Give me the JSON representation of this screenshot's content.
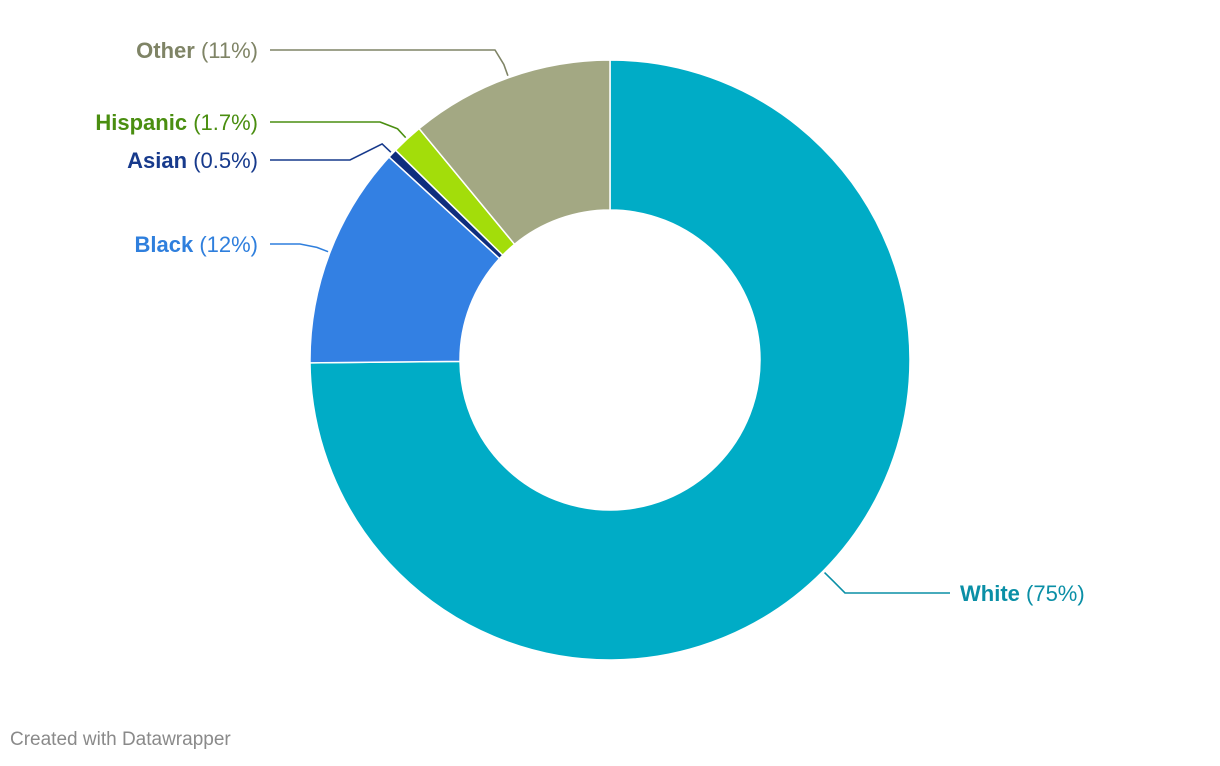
{
  "chart_data": {
    "type": "donut",
    "slices": [
      {
        "name": "White",
        "value": 75,
        "value_label": "(75%)",
        "color": "#00acc6",
        "label_color": "#0a8fa6"
      },
      {
        "name": "Black",
        "value": 12,
        "value_label": "(12%)",
        "color": "#3380e3",
        "label_color": "#2f7fdd"
      },
      {
        "name": "Asian",
        "value": 0.5,
        "value_label": "(0.5%)",
        "color": "#0e2e7e",
        "label_color": "#173a8c"
      },
      {
        "name": "Hispanic",
        "value": 1.7,
        "value_label": "(1.7%)",
        "color": "#a3dd0a",
        "label_color": "#4a8e10"
      },
      {
        "name": "Other",
        "value": 11,
        "value_label": "(11%)",
        "color": "#a3a883",
        "label_color": "#7f8466"
      }
    ],
    "start_angle_deg": 0,
    "direction": "clockwise",
    "legend": "direct-labels"
  },
  "footer": {
    "credit": "Created with Datawrapper"
  }
}
